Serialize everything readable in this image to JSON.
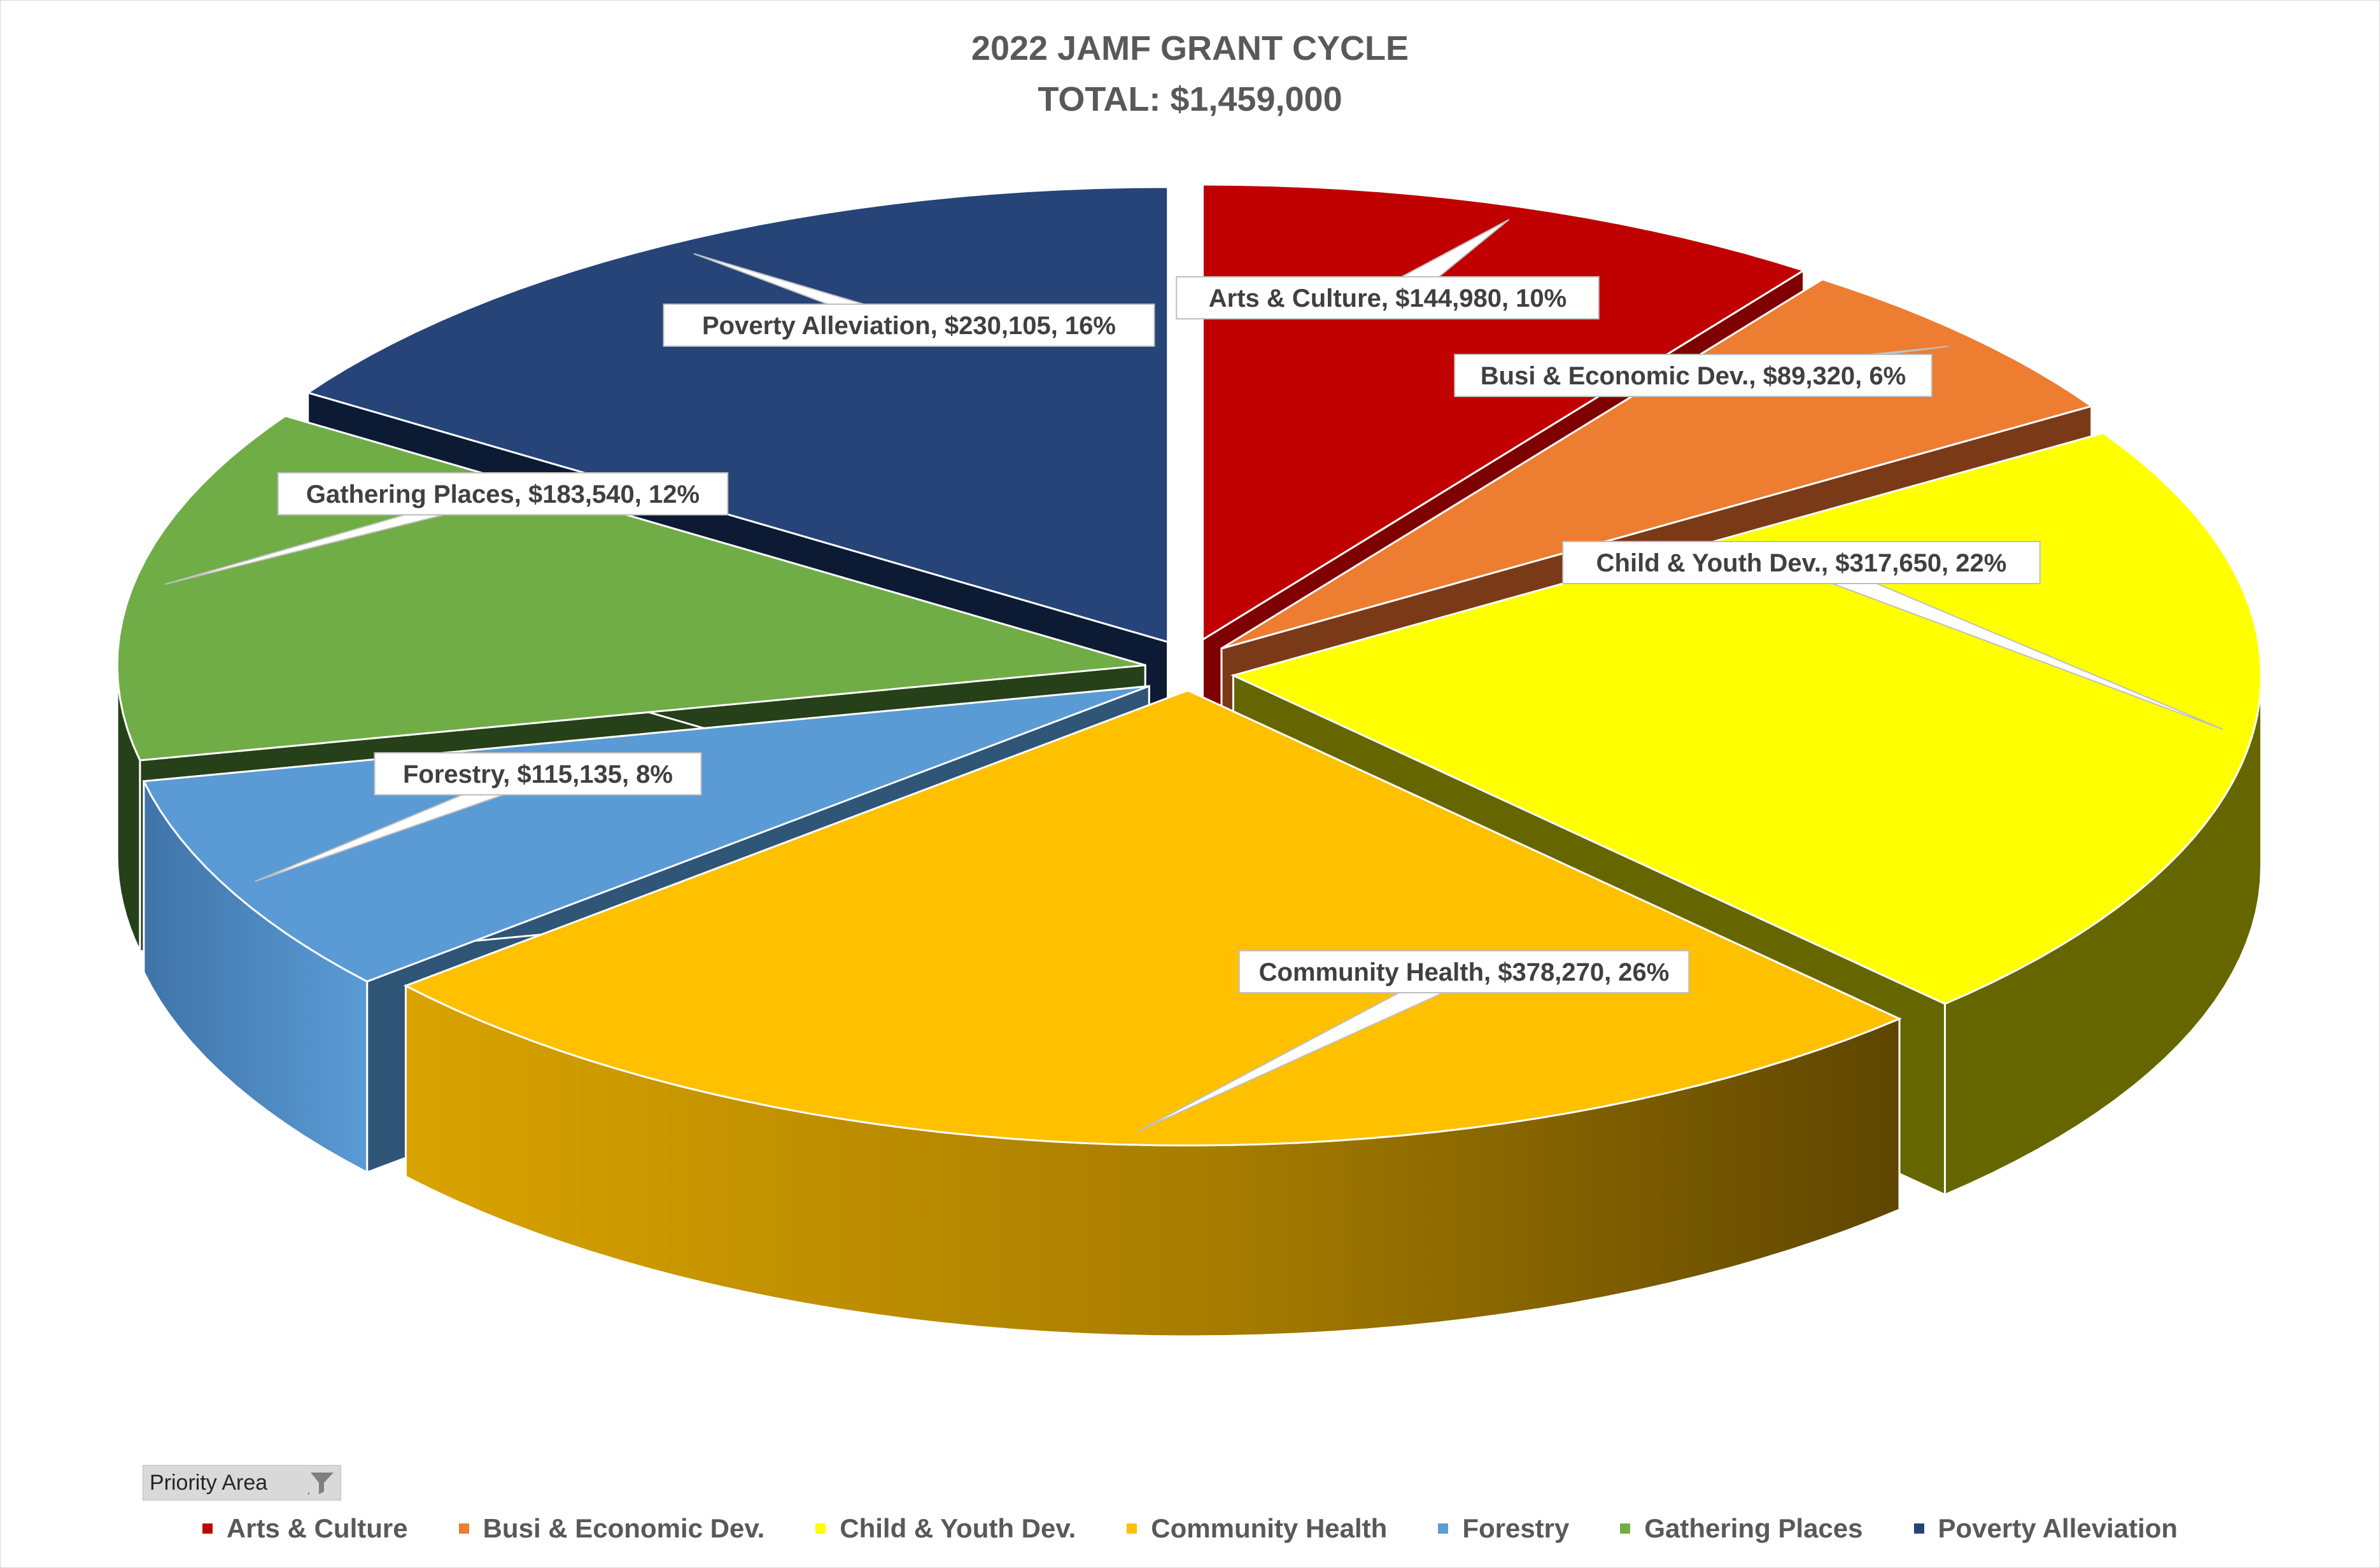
{
  "chart_data": {
    "type": "pie",
    "title": "2022 JAMF GRANT CYCLE",
    "subtitle": "TOTAL: $1,459,000",
    "slices": [
      {
        "name": "Arts & Culture",
        "value": 144980,
        "percent_label": "10%",
        "label": "Arts & Culture, $144,980, 10%",
        "color": "#c00000",
        "side": "#7f0000"
      },
      {
        "name": "Busi & Economic Dev.",
        "value": 89320,
        "percent_label": "6%",
        "label": "Busi & Economic Dev., $89,320, 6%",
        "color": "#ed7d31",
        "side": "#7a3a18"
      },
      {
        "name": "Child & Youth Dev.",
        "value": 317650,
        "percent_label": "22%",
        "label": "Child & Youth Dev., $317,650, 22%",
        "color": "#ffff00",
        "side": "#666600"
      },
      {
        "name": "Community Health",
        "value": 378270,
        "percent_label": "26%",
        "label": "Community Health, $378,270, 26%",
        "color": "#ffc000",
        "side": "#b08000"
      },
      {
        "name": "Forestry",
        "value": 115135,
        "percent_label": "8%",
        "label": "Forestry, $115,135, 8%",
        "color": "#5b9bd5",
        "side": "#2f5577"
      },
      {
        "name": "Gathering Places",
        "value": 183540,
        "percent_label": "12%",
        "label": "Gathering Places, $183,540, 12%",
        "color": "#70ad47",
        "side": "#26401a"
      },
      {
        "name": "Poverty Alleviation",
        "value": 230105,
        "percent_label": "16%",
        "label": "Poverty Alleviation, $230,105, 16%",
        "color": "#264478",
        "side": "#0d1a33"
      }
    ],
    "legend_position": "bottom",
    "explode": true
  },
  "filter": {
    "label": "Priority  Area",
    "icon": "filter-icon"
  }
}
